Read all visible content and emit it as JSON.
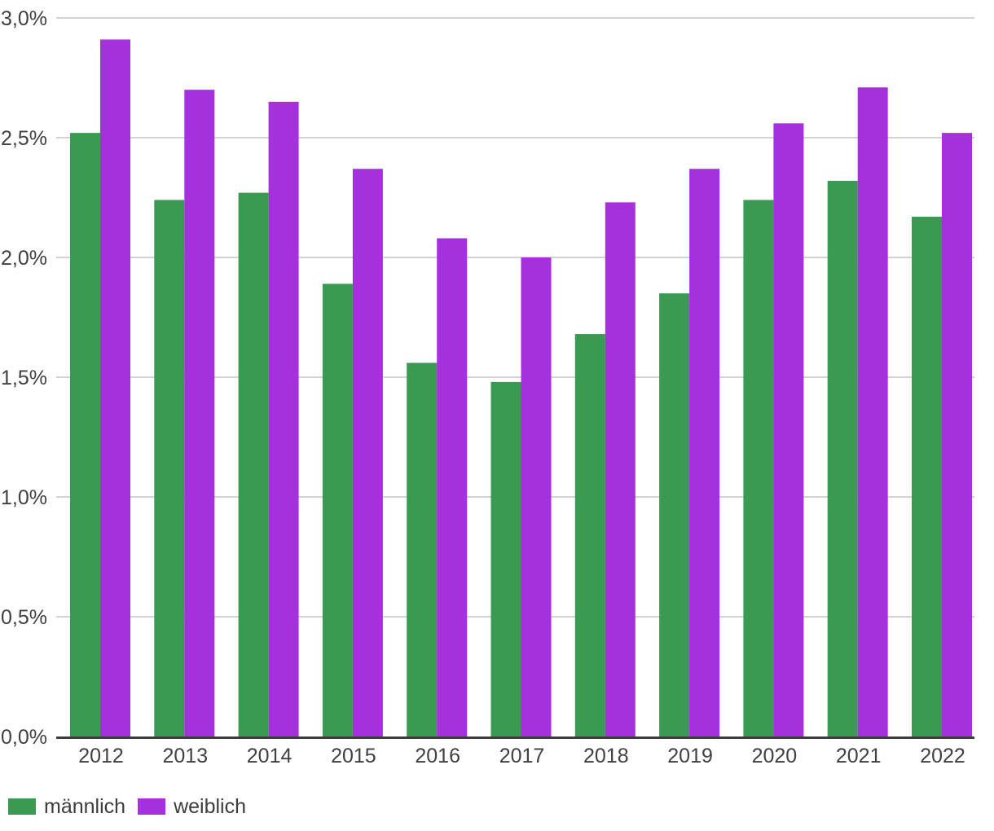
{
  "chart_data": {
    "type": "bar",
    "title": "",
    "xlabel": "",
    "ylabel": "",
    "categories": [
      "2012",
      "2013",
      "2014",
      "2015",
      "2016",
      "2017",
      "2018",
      "2019",
      "2020",
      "2021",
      "2022"
    ],
    "series": [
      {
        "name": "männlich",
        "color": "#389b51",
        "values": [
          2.52,
          2.24,
          2.27,
          1.89,
          1.56,
          1.48,
          1.68,
          1.85,
          2.24,
          2.32,
          2.17
        ]
      },
      {
        "name": "weiblich",
        "color": "#a531dd",
        "values": [
          2.91,
          2.7,
          2.65,
          2.37,
          2.08,
          2.0,
          2.23,
          2.37,
          2.56,
          2.71,
          2.52
        ]
      }
    ],
    "ylim": [
      0,
      3.0
    ],
    "ytick_values": [
      0,
      0.5,
      1.0,
      1.5,
      2.0,
      2.5,
      3.0
    ],
    "ytick_labels": [
      "0,0%",
      "0,5%",
      "1,0%",
      "1,5%",
      "2,0%",
      "2,5%",
      "3,0%"
    ],
    "value_unit": "percent",
    "decimal_separator": ",",
    "grid": "horizontal",
    "gridline_color": "#d2d2d2",
    "axis_line_color": "#3c3c3c",
    "tick_label_color": "#404040",
    "legend_position": "bottom-left"
  }
}
